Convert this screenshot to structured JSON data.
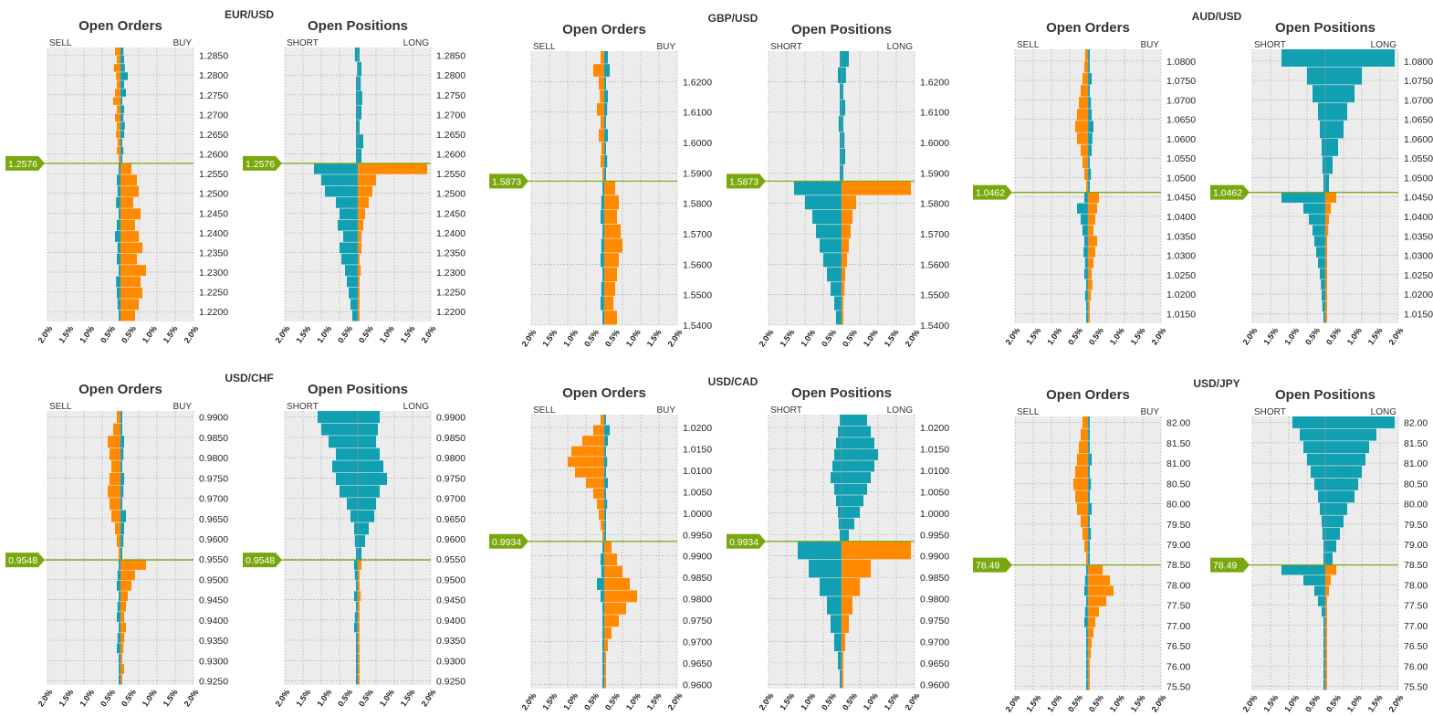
{
  "colors": {
    "orange": "#ff8a00",
    "teal": "#119fb2",
    "marker": "#79a80e",
    "panel": "#ececec",
    "grid": "#9a9a9a"
  },
  "labels": {
    "orders_title": "Open Orders",
    "positions_title": "Open Positions",
    "sell": "SELL",
    "buy": "BUY",
    "short": "SHORT",
    "long": "LONG"
  },
  "x_ticks": [
    "2.0%",
    "1.5%",
    "1.0%",
    "0.5%",
    "0.5%",
    "1.0%",
    "1.5%",
    "2.0%"
  ],
  "chart_data": [
    {
      "type": "bar",
      "pair": "EUR/USD",
      "current": "1.2576",
      "y_ticks": [
        "1.2850",
        "1.2800",
        "1.2750",
        "1.2700",
        "1.2650",
        "1.2600",
        "1.2550",
        "1.2500",
        "1.2450",
        "1.2400",
        "1.2350",
        "1.2300",
        "1.2250",
        "1.2200"
      ],
      "y_range": [
        1.2175,
        1.287
      ],
      "current_value": 1.2576,
      "x_range": [
        -2.0,
        2.0
      ],
      "orders_sell": [
        0.05,
        0.1,
        0.08,
        0.12,
        0.1,
        0.15,
        0.1,
        0.2,
        0.15,
        0.1,
        0.12,
        0.18,
        0.1,
        0.15
      ],
      "orders_buy": [
        0.05,
        0.08,
        0.05,
        0.1,
        0.12,
        0.08,
        0.1,
        0.05,
        0.15,
        0.1,
        0.2,
        0.12,
        0.1,
        0.08
      ],
      "orders_sell_below": [
        0.05,
        0.1,
        0.08,
        0.12,
        0.05,
        0.1,
        0.15,
        0.08,
        0.1,
        0.05,
        0.12,
        0.1,
        0.08,
        0.05
      ],
      "orders_buy_below": [
        0.3,
        0.45,
        0.5,
        0.35,
        0.55,
        0.4,
        0.5,
        0.6,
        0.45,
        0.7,
        0.55,
        0.6,
        0.5,
        0.4
      ],
      "pos_short_above": [
        0.05,
        0.05,
        0.05,
        0.05,
        0.05,
        0.05,
        0.02,
        0.08
      ],
      "pos_long_above": [
        0.1,
        0.15,
        0.05,
        0.1,
        0.12,
        0.08,
        0.1,
        0.05
      ],
      "pos_short_below": [
        1.2,
        1.0,
        0.9,
        0.6,
        0.5,
        0.55,
        0.4,
        0.5,
        0.45,
        0.35,
        0.3,
        0.25,
        0.2,
        0.15
      ],
      "pos_long_below": [
        1.9,
        0.5,
        0.4,
        0.3,
        0.2,
        0.15,
        0.1,
        0.1,
        0.05,
        0.08,
        0.05,
        0.05,
        0.05,
        0.05
      ]
    },
    {
      "type": "bar",
      "pair": "GBP/USD",
      "current": "1.5873",
      "y_ticks": [
        "1.6200",
        "1.6100",
        "1.6000",
        "1.5900",
        "1.5800",
        "1.5700",
        "1.5600",
        "1.5500",
        "1.5400"
      ],
      "y_range": [
        1.54,
        1.63
      ],
      "current_value": 1.5873,
      "x_range": [
        -2.0,
        2.0
      ],
      "orders_sell": [
        0.05,
        0.1,
        0.08,
        0.15,
        0.1,
        0.2,
        0.12,
        0.15,
        0.3,
        0.1
      ],
      "orders_buy": [
        0.05,
        0.08,
        0.05,
        0.1,
        0.05,
        0.08,
        0.1,
        0.05,
        0.15,
        0.1
      ],
      "orders_sell_below": [
        0.05,
        0.08,
        0.1,
        0.05,
        0.08,
        0.1,
        0.05,
        0.08,
        0.1,
        0.05
      ],
      "orders_buy_below": [
        0.3,
        0.4,
        0.35,
        0.45,
        0.5,
        0.4,
        0.35,
        0.3,
        0.25,
        0.35
      ],
      "pos_short_above": [
        0.05,
        0.05,
        0.05,
        0.08,
        0.05,
        0.05,
        0.1,
        0.05
      ],
      "pos_long_above": [
        0.05,
        0.1,
        0.08,
        0.05,
        0.1,
        0.05,
        0.12,
        0.2
      ],
      "pos_short_below": [
        1.3,
        1.0,
        0.8,
        0.7,
        0.6,
        0.5,
        0.4,
        0.3,
        0.2,
        0.15
      ],
      "pos_long_below": [
        1.9,
        0.4,
        0.3,
        0.25,
        0.2,
        0.15,
        0.1,
        0.08,
        0.05,
        0.05
      ]
    },
    {
      "type": "bar",
      "pair": "AUD/USD",
      "current": "1.0462",
      "y_ticks": [
        "1.0800",
        "1.0750",
        "1.0700",
        "1.0650",
        "1.0600",
        "1.0550",
        "1.0500",
        "1.0450",
        "1.0400",
        "1.0350",
        "1.0300",
        "1.0250",
        "1.0200",
        "1.0150"
      ],
      "y_range": [
        1.0125,
        1.083
      ],
      "current_value": 1.0462,
      "x_range": [
        -2.0,
        2.0
      ],
      "orders_sell": [
        0.05,
        0.1,
        0.15,
        0.2,
        0.3,
        0.35,
        0.3,
        0.25,
        0.2,
        0.15,
        0.1,
        0.08
      ],
      "orders_buy": [
        0.05,
        0.08,
        0.05,
        0.1,
        0.12,
        0.15,
        0.1,
        0.08,
        0.05,
        0.1,
        0.05,
        0.05
      ],
      "orders_sell_below": [
        0.1,
        0.3,
        0.2,
        0.15,
        0.1,
        0.12,
        0.08,
        0.1,
        0.05,
        0.08,
        0.05,
        0.05
      ],
      "orders_buy_below": [
        0.3,
        0.25,
        0.2,
        0.15,
        0.25,
        0.2,
        0.15,
        0.1,
        0.12,
        0.08,
        0.05,
        0.05
      ],
      "pos_short_above": [
        0.05,
        0.08,
        0.1,
        0.15,
        0.2,
        0.35,
        0.5,
        1.2
      ],
      "pos_long_above": [
        0.1,
        0.2,
        0.35,
        0.5,
        0.6,
        0.8,
        1.0,
        1.9
      ],
      "pos_short_below": [
        1.2,
        0.6,
        0.45,
        0.35,
        0.3,
        0.25,
        0.2,
        0.15,
        0.12,
        0.1,
        0.08,
        0.05
      ],
      "pos_long_below": [
        0.3,
        0.15,
        0.1,
        0.08,
        0.05,
        0.05,
        0.05,
        0.05,
        0.05,
        0.05,
        0.05,
        0.05
      ]
    },
    {
      "type": "bar",
      "pair": "USD/CHF",
      "current": "0.9548",
      "y_ticks": [
        "0.9900",
        "0.9850",
        "0.9800",
        "0.9750",
        "0.9700",
        "0.9650",
        "0.9600",
        "0.9550",
        "0.9500",
        "0.9450",
        "0.9400",
        "0.9350",
        "0.9300",
        "0.9250"
      ],
      "y_range": [
        0.924,
        0.9915
      ],
      "current_value": 0.9548,
      "x_range": [
        -2.0,
        2.0
      ],
      "orders_sell": [
        0.05,
        0.1,
        0.15,
        0.25,
        0.3,
        0.35,
        0.3,
        0.25,
        0.3,
        0.35,
        0.2,
        0.1
      ],
      "orders_buy": [
        0.05,
        0.08,
        0.1,
        0.15,
        0.05,
        0.08,
        0.1,
        0.05,
        0.08,
        0.1,
        0.05,
        0.05
      ],
      "orders_sell_below": [
        0.05,
        0.08,
        0.1,
        0.05,
        0.08,
        0.1,
        0.05,
        0.08,
        0.1,
        0.05,
        0.05,
        0.05
      ],
      "orders_buy_below": [
        0.7,
        0.4,
        0.3,
        0.2,
        0.15,
        0.1,
        0.15,
        0.1,
        0.08,
        0.05,
        0.1,
        0.05
      ],
      "pos_short_above": [
        0.05,
        0.08,
        0.1,
        0.2,
        0.3,
        0.5,
        0.6,
        0.7,
        0.6,
        0.8,
        1.0,
        1.1
      ],
      "pos_long_above": [
        0.1,
        0.2,
        0.3,
        0.45,
        0.5,
        0.6,
        0.8,
        0.7,
        0.6,
        0.5,
        0.55,
        0.6
      ],
      "pos_short_below": [
        0.1,
        0.08,
        0.05,
        0.1,
        0.05,
        0.08,
        0.1,
        0.05,
        0.05,
        0.05,
        0.05,
        0.05
      ],
      "pos_long_below": [
        0.1,
        0.05,
        0.05,
        0.08,
        0.05,
        0.05,
        0.05,
        0.05,
        0.05,
        0.05,
        0.05,
        0.05
      ]
    },
    {
      "type": "bar",
      "pair": "USD/CAD",
      "current": "0.9934",
      "y_ticks": [
        "1.0200",
        "1.0150",
        "1.0100",
        "1.0050",
        "1.0000",
        "0.9950",
        "0.9900",
        "0.9850",
        "0.9800",
        "0.9750",
        "0.9700",
        "0.9650",
        "0.9600"
      ],
      "y_range": [
        0.959,
        1.023
      ],
      "current_value": 0.9934,
      "x_range": [
        -2.0,
        2.0
      ],
      "orders_sell": [
        0.05,
        0.1,
        0.15,
        0.2,
        0.3,
        0.5,
        0.8,
        1.0,
        0.9,
        0.6,
        0.3,
        0.1
      ],
      "orders_buy": [
        0.05,
        0.05,
        0.05,
        0.08,
        0.05,
        0.1,
        0.05,
        0.08,
        0.05,
        0.1,
        0.15,
        0.05
      ],
      "orders_sell_below": [
        0.05,
        0.1,
        0.08,
        0.2,
        0.1,
        0.05,
        0.05,
        0.05,
        0.05,
        0.05,
        0.05,
        0.05
      ],
      "orders_buy_below": [
        0.2,
        0.35,
        0.5,
        0.7,
        0.9,
        0.6,
        0.4,
        0.2,
        0.1,
        0.05,
        0.05,
        0.05
      ],
      "pos_short_above": [
        0.05,
        0.08,
        0.1,
        0.15,
        0.2,
        0.3,
        0.25,
        0.2,
        0.15,
        0.1,
        0.05
      ],
      "pos_long_above": [
        0.2,
        0.35,
        0.5,
        0.6,
        0.7,
        0.8,
        0.9,
        1.0,
        0.9,
        0.8,
        0.7
      ],
      "pos_short_below": [
        1.2,
        0.9,
        0.6,
        0.4,
        0.3,
        0.2,
        0.1,
        0.05
      ],
      "pos_long_below": [
        1.9,
        0.8,
        0.5,
        0.3,
        0.2,
        0.1,
        0.05,
        0.05
      ]
    },
    {
      "type": "bar",
      "pair": "USD/JPY",
      "current": "78.49",
      "y_ticks": [
        "82.00",
        "81.50",
        "81.00",
        "80.50",
        "80.00",
        "79.50",
        "79.00",
        "78.50",
        "78.00",
        "77.50",
        "77.00",
        "76.50",
        "76.00",
        "75.50"
      ],
      "y_range": [
        75.4,
        82.15
      ],
      "current_value": 78.49,
      "x_range": [
        -2.0,
        2.0
      ],
      "orders_sell": [
        0.05,
        0.1,
        0.15,
        0.2,
        0.3,
        0.35,
        0.4,
        0.35,
        0.3,
        0.25,
        0.2,
        0.15
      ],
      "orders_buy": [
        0.05,
        0.05,
        0.08,
        0.05,
        0.1,
        0.05,
        0.08,
        0.05,
        0.1,
        0.05,
        0.05,
        0.05
      ],
      "orders_sell_below": [
        0.05,
        0.08,
        0.1,
        0.05,
        0.08,
        0.1,
        0.05,
        0.05,
        0.05,
        0.05,
        0.05,
        0.05
      ],
      "orders_buy_below": [
        0.4,
        0.6,
        0.7,
        0.5,
        0.3,
        0.2,
        0.15,
        0.1,
        0.08,
        0.05,
        0.05,
        0.05
      ],
      "pos_short_above": [
        0.05,
        0.05,
        0.08,
        0.1,
        0.15,
        0.2,
        0.3,
        0.4,
        0.5,
        0.6,
        0.7,
        0.9
      ],
      "pos_long_above": [
        0.2,
        0.3,
        0.4,
        0.5,
        0.6,
        0.8,
        0.9,
        1.0,
        1.1,
        1.2,
        1.4,
        1.9
      ],
      "pos_short_below": [
        1.2,
        0.6,
        0.3,
        0.2,
        0.1,
        0.05,
        0.05,
        0.05,
        0.05,
        0.05,
        0.05,
        0.05
      ],
      "pos_long_below": [
        0.3,
        0.15,
        0.1,
        0.05,
        0.05,
        0.05,
        0.05,
        0.05,
        0.05,
        0.05,
        0.05,
        0.05
      ]
    }
  ]
}
